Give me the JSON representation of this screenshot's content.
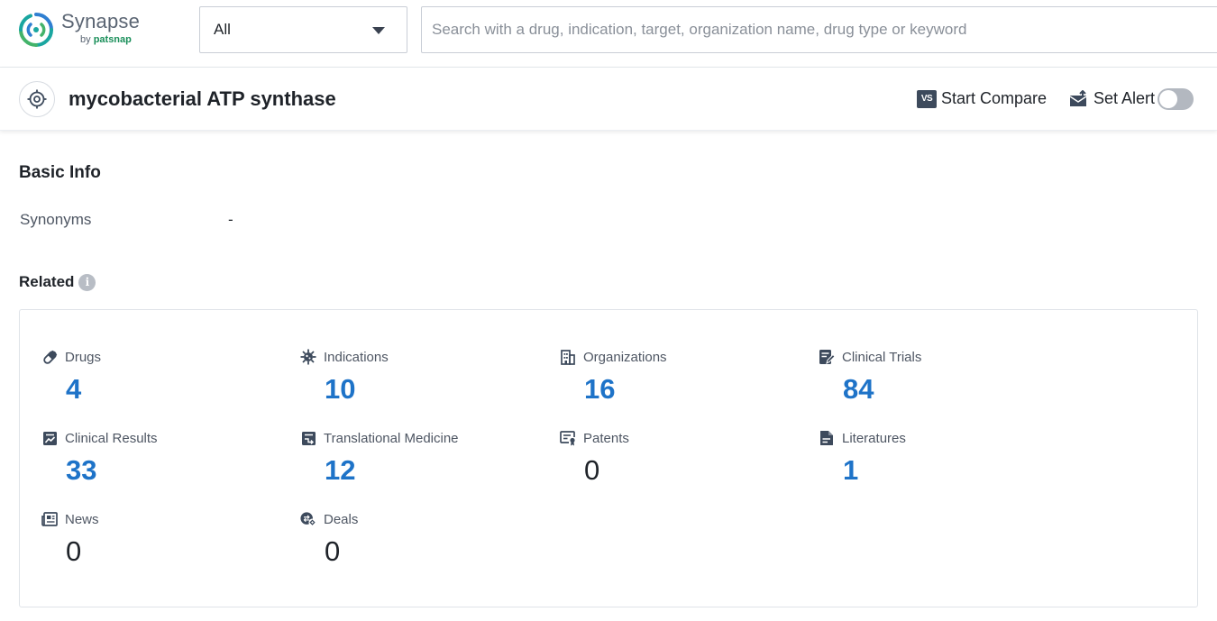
{
  "brand": {
    "name": "Synapse",
    "by": "by",
    "sub": "patsnap",
    "colors": {
      "teal": "#1aa6a0",
      "blue": "#2f7fd1",
      "green": "#43b36a"
    }
  },
  "search": {
    "scope_value": "All",
    "placeholder": "Search with a drug, indication, target, organization name, drug type or keyword"
  },
  "header": {
    "title": "mycobacterial ATP synthase",
    "compare_label": "Start Compare",
    "compare_icon_text": "VS",
    "alert_label": "Set Alert",
    "alert_enabled": false
  },
  "basic_info": {
    "title": "Basic Info",
    "synonyms_label": "Synonyms",
    "synonyms_value": "-"
  },
  "related": {
    "title": "Related",
    "info_glyph": "i",
    "accent_color": "#1e73c8",
    "items": [
      {
        "label": "Drugs",
        "value": "4",
        "icon": "pill-icon"
      },
      {
        "label": "Indications",
        "value": "10",
        "icon": "virus-icon"
      },
      {
        "label": "Organizations",
        "value": "16",
        "icon": "building-icon"
      },
      {
        "label": "Clinical Trials",
        "value": "84",
        "icon": "clipboard-edit-icon"
      },
      {
        "label": "Clinical Results",
        "value": "33",
        "icon": "chart-report-icon"
      },
      {
        "label": "Translational Medicine",
        "value": "12",
        "icon": "flow-report-icon"
      },
      {
        "label": "Patents",
        "value": "0",
        "icon": "certificate-icon"
      },
      {
        "label": "Literatures",
        "value": "1",
        "icon": "document-icon"
      },
      {
        "label": "News",
        "value": "0",
        "icon": "newspaper-icon"
      },
      {
        "label": "Deals",
        "value": "0",
        "icon": "deal-icon"
      }
    ]
  }
}
